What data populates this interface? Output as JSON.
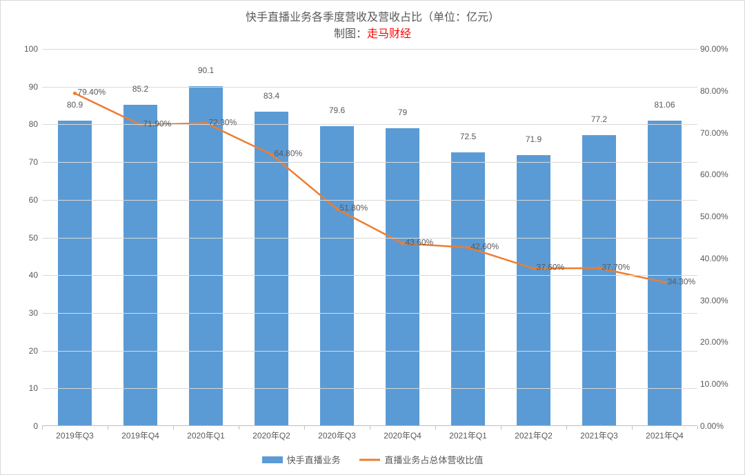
{
  "title": "快手直播业务各季度营收及营收占比（单位：亿元）",
  "subtitle_prefix": "制图：",
  "subtitle_red": "走马财经",
  "chart": {
    "type": "bar+line",
    "categories": [
      "2019年Q3",
      "2019年Q4",
      "2020年Q1",
      "2020年Q2",
      "2020年Q3",
      "2020年Q4",
      "2021年Q1",
      "2021年Q2",
      "2021年Q3",
      "2021年Q4"
    ],
    "bar_series": {
      "name": "快手直播业务",
      "values": [
        80.9,
        85.2,
        90.1,
        83.4,
        79.6,
        79,
        72.5,
        71.9,
        77.2,
        81.06
      ],
      "labels": [
        "80.9",
        "85.2",
        "90.1",
        "83.4",
        "79.6",
        "79",
        "72.5",
        "71.9",
        "77.2",
        "81.06"
      ],
      "color": "#5b9bd5",
      "bar_width": 0.52
    },
    "line_series": {
      "name": "直播业务占总体营收比值",
      "values": [
        79.4,
        71.9,
        72.3,
        64.8,
        51.8,
        43.6,
        42.6,
        37.6,
        37.7,
        34.3
      ],
      "labels": [
        "79.40%",
        "71.90%",
        "72.30%",
        "64.80%",
        "51.80%",
        "43.60%",
        "42.60%",
        "37.60%",
        "37.70%",
        "34.30%"
      ],
      "color": "#ed7d31",
      "marker_size": 5,
      "line_width": 2.5
    },
    "y_left": {
      "min": 0,
      "max": 100,
      "step": 10,
      "tick_labels": [
        "0",
        "10",
        "20",
        "30",
        "40",
        "50",
        "60",
        "70",
        "80",
        "90",
        "100"
      ]
    },
    "y_right": {
      "min": 0,
      "max": 90,
      "step": 10,
      "tick_labels": [
        "0.00%",
        "10.00%",
        "20.00%",
        "30.00%",
        "40.00%",
        "50.00%",
        "60.00%",
        "70.00%",
        "80.00%",
        "90.00%"
      ]
    },
    "grid_color": "#d9d9d9",
    "axis_color": "#bfbfbf",
    "background_color": "#ffffff",
    "text_color": "#595959",
    "title_fontsize": 16,
    "label_fontsize": 12
  },
  "legend": {
    "items": [
      {
        "type": "bar",
        "label": "快手直播业务"
      },
      {
        "type": "line",
        "label": "直播业务占总体营收比值"
      }
    ]
  }
}
